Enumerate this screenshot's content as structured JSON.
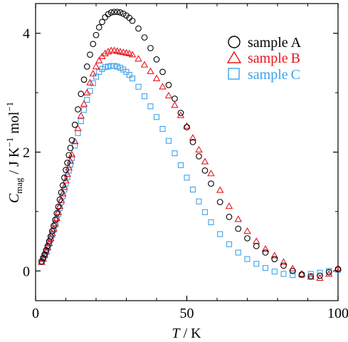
{
  "chart_data": {
    "type": "scatter",
    "xlabel": "T / K",
    "xlabel_parts": {
      "var": "T",
      "rest": " / K"
    },
    "ylabel": "C_mag / J K^-1 mol^-1",
    "ylabel_parts": {
      "C": "C",
      "sub": "mag",
      "mid": " / J K",
      "sup1": "−1",
      "mol": " mol",
      "sup2": "−1"
    },
    "xlim": [
      0,
      100
    ],
    "ylim": [
      -0.5,
      4.5
    ],
    "xticks": [
      0,
      50,
      100
    ],
    "xtick_labels": [
      "0",
      "50",
      "100"
    ],
    "yticks": [
      0,
      2,
      4
    ],
    "ytick_labels": [
      "0",
      "2",
      "4"
    ],
    "grid": false,
    "legend_position": "top-right",
    "series": [
      {
        "name": "sample A",
        "name_parts": {
          "word": "sample",
          "letter": "A"
        },
        "marker": "circle",
        "color": "#000000",
        "x": [
          2.0,
          2.5,
          3.0,
          3.5,
          4.0,
          4.5,
          5.0,
          5.5,
          6.0,
          6.5,
          7.0,
          7.5,
          8.0,
          8.5,
          9.0,
          9.5,
          10.0,
          10.5,
          11.0,
          11.5,
          12,
          13,
          14,
          15,
          16,
          17,
          18,
          19,
          20,
          21,
          22,
          23,
          24,
          25,
          26,
          27,
          28,
          29,
          30,
          31,
          32,
          34,
          36,
          38,
          40,
          42,
          44,
          46,
          48,
          50,
          52,
          54,
          56,
          58,
          61,
          64,
          67,
          70,
          73,
          76,
          79,
          82,
          85,
          88,
          91,
          94,
          97,
          100
        ],
        "y": [
          0.16,
          0.22,
          0.28,
          0.35,
          0.42,
          0.5,
          0.58,
          0.67,
          0.76,
          0.86,
          0.97,
          1.08,
          1.2,
          1.32,
          1.44,
          1.57,
          1.7,
          1.82,
          1.95,
          2.07,
          2.2,
          2.46,
          2.72,
          2.98,
          3.22,
          3.44,
          3.64,
          3.82,
          3.97,
          4.1,
          4.19,
          4.27,
          4.32,
          4.35,
          4.36,
          4.36,
          4.35,
          4.33,
          4.3,
          4.26,
          4.21,
          4.08,
          3.93,
          3.75,
          3.56,
          3.35,
          3.13,
          2.9,
          2.66,
          2.42,
          2.17,
          1.93,
          1.69,
          1.47,
          1.16,
          0.91,
          0.71,
          0.55,
          0.42,
          0.31,
          0.2,
          0.09,
          0.0,
          -0.06,
          -0.09,
          -0.08,
          -0.02,
          0.03
        ]
      },
      {
        "name": "sample B",
        "name_parts": {
          "word": "sample",
          "letter": "B"
        },
        "marker": "triangle",
        "color": "#e8141b",
        "x": [
          2.0,
          2.5,
          3.0,
          3.5,
          4.0,
          4.5,
          5.0,
          5.5,
          6.0,
          6.5,
          7.0,
          7.5,
          8.0,
          8.5,
          9.0,
          9.5,
          10.0,
          10.5,
          11.0,
          11.5,
          12,
          13,
          14,
          15,
          16,
          17,
          18,
          19,
          20,
          21,
          22,
          23,
          24,
          25,
          26,
          27,
          28,
          29,
          30,
          31,
          32,
          34,
          36,
          38,
          40,
          42,
          44,
          46,
          48,
          50,
          52,
          54,
          56,
          58,
          61,
          64,
          67,
          70,
          73,
          76,
          79,
          82,
          85,
          88,
          91,
          94,
          97,
          100
        ],
        "y": [
          0.15,
          0.21,
          0.27,
          0.33,
          0.4,
          0.47,
          0.55,
          0.63,
          0.71,
          0.8,
          0.89,
          0.99,
          1.09,
          1.19,
          1.3,
          1.41,
          1.52,
          1.63,
          1.74,
          1.85,
          1.96,
          2.18,
          2.4,
          2.61,
          2.81,
          3.0,
          3.17,
          3.32,
          3.44,
          3.54,
          3.61,
          3.66,
          3.69,
          3.71,
          3.71,
          3.7,
          3.69,
          3.68,
          3.67,
          3.66,
          3.64,
          3.57,
          3.47,
          3.36,
          3.24,
          3.1,
          2.95,
          2.79,
          2.62,
          2.44,
          2.24,
          2.04,
          1.84,
          1.64,
          1.36,
          1.09,
          0.87,
          0.67,
          0.5,
          0.37,
          0.26,
          0.15,
          0.04,
          -0.05,
          -0.1,
          -0.12,
          -0.05,
          0.05
        ]
      },
      {
        "name": "sample C",
        "name_parts": {
          "word": "sample",
          "letter": "C"
        },
        "marker": "square",
        "color": "#3ea2e8",
        "x": [
          2.0,
          2.5,
          3.0,
          3.5,
          4.0,
          4.5,
          5.0,
          5.5,
          6.0,
          6.5,
          7.0,
          7.5,
          8.0,
          8.5,
          9.0,
          9.5,
          10.0,
          10.5,
          11.0,
          11.5,
          12,
          13,
          14,
          15,
          16,
          17,
          18,
          19,
          20,
          21,
          22,
          23,
          24,
          25,
          26,
          27,
          28,
          29,
          30,
          31,
          32,
          34,
          36,
          38,
          40,
          42,
          44,
          46,
          48,
          50,
          52,
          54,
          56,
          58,
          61,
          64,
          67,
          70,
          73,
          76,
          79,
          82,
          85,
          88,
          91,
          94,
          97,
          100
        ],
        "y": [
          0.15,
          0.2,
          0.26,
          0.32,
          0.39,
          0.46,
          0.53,
          0.61,
          0.69,
          0.78,
          0.87,
          0.96,
          1.06,
          1.16,
          1.26,
          1.37,
          1.47,
          1.58,
          1.69,
          1.79,
          1.9,
          2.11,
          2.32,
          2.52,
          2.71,
          2.88,
          3.03,
          3.16,
          3.27,
          3.35,
          3.4,
          3.43,
          3.44,
          3.45,
          3.45,
          3.44,
          3.42,
          3.39,
          3.35,
          3.3,
          3.24,
          3.1,
          2.94,
          2.77,
          2.59,
          2.39,
          2.19,
          1.98,
          1.78,
          1.57,
          1.37,
          1.17,
          0.99,
          0.82,
          0.62,
          0.45,
          0.31,
          0.2,
          0.12,
          0.05,
          -0.01,
          -0.05,
          -0.07,
          -0.07,
          -0.05,
          -0.03,
          0.0,
          0.02
        ]
      }
    ]
  }
}
